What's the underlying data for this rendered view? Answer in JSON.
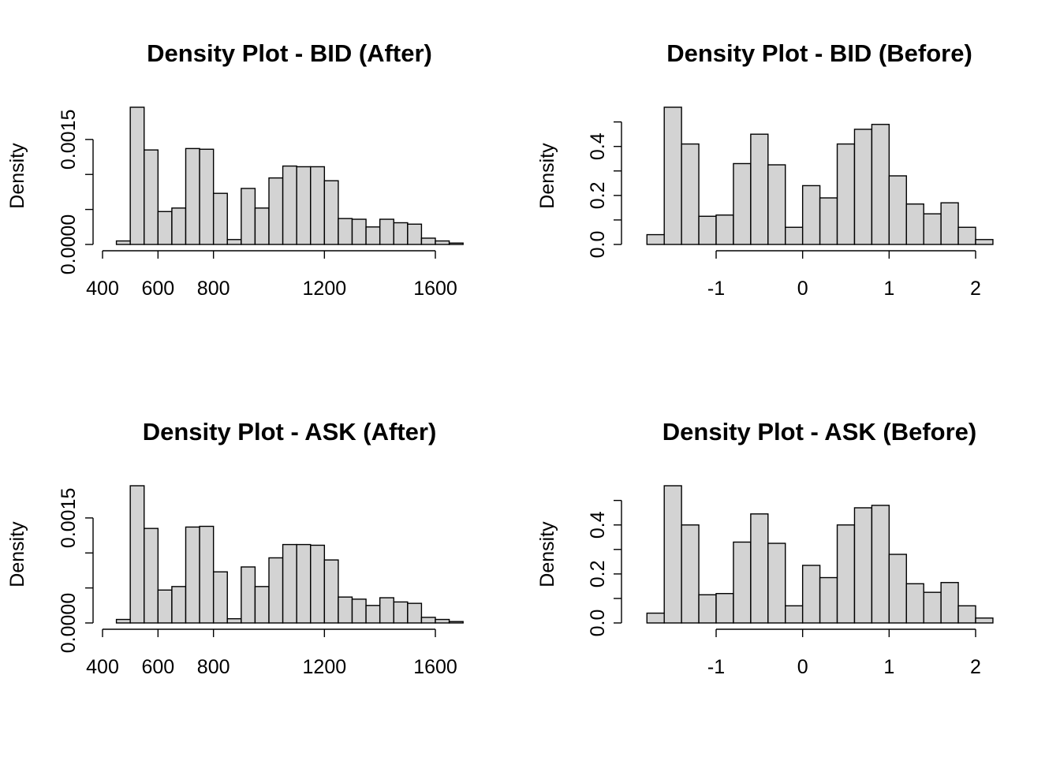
{
  "chart_data": [
    {
      "type": "bar",
      "title": "Density Plot -  BID (After)",
      "xlabel": "",
      "ylabel": "Density",
      "bin_edges": [
        450,
        500,
        550,
        600,
        650,
        700,
        750,
        800,
        850,
        900,
        950,
        1000,
        1050,
        1100,
        1150,
        1200,
        1250,
        1300,
        1350,
        1400,
        1450,
        1500,
        1550,
        1600,
        1650,
        1700
      ],
      "values": [
        5e-05,
        0.00196,
        0.00135,
        0.00047,
        0.00052,
        0.00137,
        0.00136,
        0.00073,
        7e-05,
        0.0008,
        0.00052,
        0.00095,
        0.00112,
        0.00111,
        0.00111,
        0.00091,
        0.00037,
        0.00036,
        0.00025,
        0.00036,
        0.00031,
        0.00029,
        9e-05,
        5e-05,
        2e-05
      ],
      "xticks": [
        400,
        600,
        800,
        1200,
        1600
      ],
      "yticks": [
        0.0,
        0.0015
      ],
      "xlim": [
        400,
        1700
      ],
      "ylim": [
        0,
        0.00196
      ]
    },
    {
      "type": "bar",
      "title": "Density Plot -  BID (Before)",
      "xlabel": "",
      "ylabel": "Density",
      "bin_edges": [
        -1.8,
        -1.6,
        -1.4,
        -1.2,
        -1.0,
        -0.8,
        -0.6,
        -0.4,
        -0.2,
        0.0,
        0.2,
        0.4,
        0.6,
        0.8,
        1.0,
        1.2,
        1.4,
        1.6,
        1.8,
        2.0,
        2.2
      ],
      "values": [
        0.04,
        0.56,
        0.41,
        0.115,
        0.12,
        0.33,
        0.45,
        0.325,
        0.07,
        0.24,
        0.19,
        0.41,
        0.47,
        0.49,
        0.28,
        0.165,
        0.125,
        0.17,
        0.07,
        0.02
      ],
      "xticks": [
        -1,
        0,
        1,
        2
      ],
      "yticks": [
        0.0,
        0.2,
        0.4
      ],
      "xlim": [
        -1.8,
        2.2
      ],
      "ylim": [
        0,
        0.56
      ]
    },
    {
      "type": "bar",
      "title": "Density Plot -  ASK (After)",
      "xlabel": "",
      "ylabel": "Density",
      "bin_edges": [
        450,
        500,
        550,
        600,
        650,
        700,
        750,
        800,
        850,
        900,
        950,
        1000,
        1050,
        1100,
        1150,
        1200,
        1250,
        1300,
        1350,
        1400,
        1450,
        1500,
        1550,
        1600,
        1650,
        1700
      ],
      "values": [
        5e-05,
        0.00196,
        0.00135,
        0.00047,
        0.00052,
        0.00137,
        0.00138,
        0.00073,
        6e-05,
        0.0008,
        0.00052,
        0.00093,
        0.00112,
        0.00112,
        0.00111,
        0.0009,
        0.00037,
        0.00034,
        0.00025,
        0.00036,
        0.0003,
        0.00028,
        8e-05,
        5e-05,
        2e-05
      ],
      "xticks": [
        400,
        600,
        800,
        1200,
        1600
      ],
      "yticks": [
        0.0,
        0.0015
      ],
      "xlim": [
        400,
        1700
      ],
      "ylim": [
        0,
        0.00196
      ]
    },
    {
      "type": "bar",
      "title": "Density Plot -  ASK (Before)",
      "xlabel": "",
      "ylabel": "Density",
      "bin_edges": [
        -1.8,
        -1.6,
        -1.4,
        -1.2,
        -1.0,
        -0.8,
        -0.6,
        -0.4,
        -0.2,
        0.0,
        0.2,
        0.4,
        0.6,
        0.8,
        1.0,
        1.2,
        1.4,
        1.6,
        1.8,
        2.0,
        2.2
      ],
      "values": [
        0.04,
        0.56,
        0.4,
        0.115,
        0.12,
        0.33,
        0.445,
        0.325,
        0.07,
        0.235,
        0.185,
        0.4,
        0.47,
        0.48,
        0.28,
        0.16,
        0.125,
        0.165,
        0.07,
        0.02
      ],
      "xticks": [
        -1,
        0,
        1,
        2
      ],
      "yticks": [
        0.0,
        0.2,
        0.4
      ],
      "xlim": [
        -1.8,
        2.2
      ],
      "ylim": [
        0,
        0.56
      ]
    }
  ]
}
